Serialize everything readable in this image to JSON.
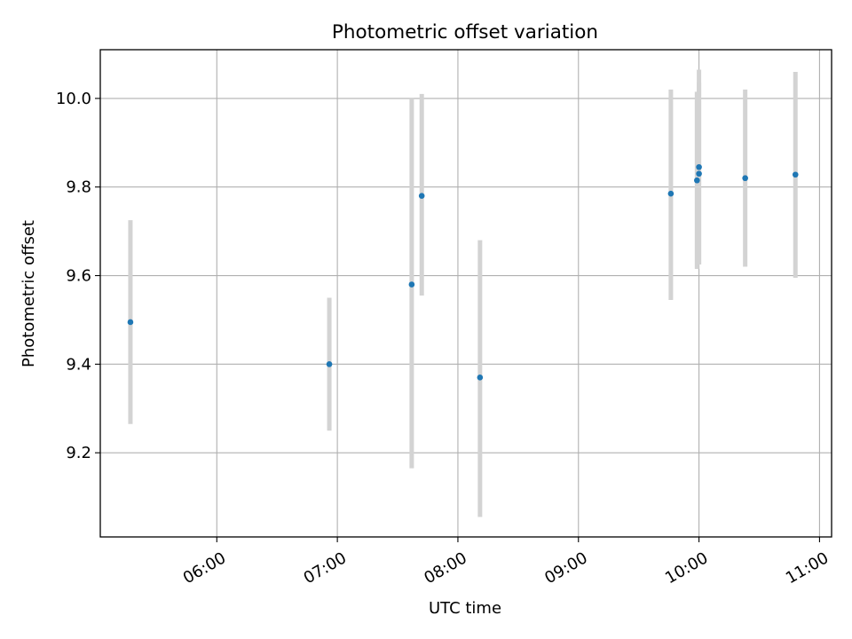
{
  "chart_data": {
    "type": "scatter",
    "title": "Photometric offset variation",
    "xlabel": "UTC time",
    "ylabel": "Photometric offset",
    "x_axis_type": "time",
    "xlim": [
      "05:02",
      "11:06"
    ],
    "ylim": [
      9.01,
      10.11
    ],
    "x_ticks": [
      "06:00",
      "07:00",
      "08:00",
      "09:00",
      "10:00",
      "11:00"
    ],
    "y_ticks": [
      9.2,
      9.4,
      9.6,
      9.8,
      10.0
    ],
    "y_tick_labels": [
      "9.2",
      "9.4",
      "9.6",
      "9.8",
      "10.0"
    ],
    "grid": true,
    "errorbar_color": "#d3d3d3",
    "marker_color": "#1f77b4",
    "points": [
      {
        "x": "05:17",
        "y": 9.495,
        "ylow": 9.265,
        "yhigh": 9.725
      },
      {
        "x": "06:56",
        "y": 9.4,
        "ylow": 9.25,
        "yhigh": 9.55
      },
      {
        "x": "07:37",
        "y": 9.58,
        "ylow": 9.165,
        "yhigh": 10.0
      },
      {
        "x": "07:42",
        "y": 9.78,
        "ylow": 9.555,
        "yhigh": 10.01
      },
      {
        "x": "08:11",
        "y": 9.37,
        "ylow": 9.055,
        "yhigh": 9.68
      },
      {
        "x": "09:46",
        "y": 9.785,
        "ylow": 9.545,
        "yhigh": 10.02
      },
      {
        "x": "09:59",
        "y": 9.815,
        "ylow": 9.615,
        "yhigh": 10.015
      },
      {
        "x": "10:00",
        "y": 9.83,
        "ylow": 9.625,
        "yhigh": 10.035
      },
      {
        "x": "10:00",
        "y": 9.845,
        "ylow": 9.625,
        "yhigh": 10.065
      },
      {
        "x": "10:23",
        "y": 9.82,
        "ylow": 9.62,
        "yhigh": 10.02
      },
      {
        "x": "10:48",
        "y": 9.828,
        "ylow": 9.595,
        "yhigh": 10.06
      }
    ]
  }
}
